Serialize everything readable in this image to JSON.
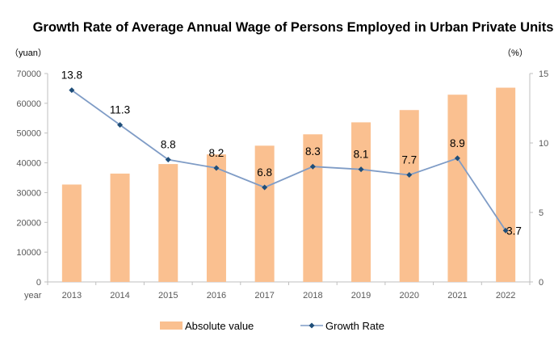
{
  "chart_data": {
    "type": "bar+line",
    "title": "Growth Rate of Average Annual Wage of Persons Employed in Urban Private Units",
    "x_axis_label": "year",
    "left_axis_unit": "（yuan）",
    "right_axis_unit": "（%）",
    "categories": [
      "2013",
      "2014",
      "2015",
      "2016",
      "2017",
      "2018",
      "2019",
      "2020",
      "2021",
      "2022"
    ],
    "series": [
      {
        "name": "Absolute value",
        "type": "bar",
        "axis": "left",
        "color": "#fac090",
        "values": [
          32706,
          36390,
          39589,
          42833,
          45761,
          49575,
          53604,
          57727,
          62884,
          65237
        ]
      },
      {
        "name": "Growth Rate",
        "type": "line",
        "axis": "right",
        "color": "#7f9cc6",
        "marker_color": "#1f4e79",
        "values": [
          13.8,
          11.3,
          8.8,
          8.2,
          6.8,
          8.3,
          8.1,
          7.7,
          8.9,
          3.7
        ],
        "labels": [
          "13.8",
          "11.3",
          "8.8",
          "8.2",
          "6.8",
          "8.3",
          "8.1",
          "7.7",
          "8.9",
          "3.7"
        ]
      }
    ],
    "left_ylim": [
      0,
      70000
    ],
    "left_ticks": [
      "0",
      "10000",
      "20000",
      "30000",
      "40000",
      "50000",
      "60000",
      "70000"
    ],
    "right_ylim": [
      0,
      15
    ],
    "right_ticks": [
      "0",
      "5",
      "10",
      "15"
    ],
    "grid": false,
    "legend_position": "bottom"
  }
}
